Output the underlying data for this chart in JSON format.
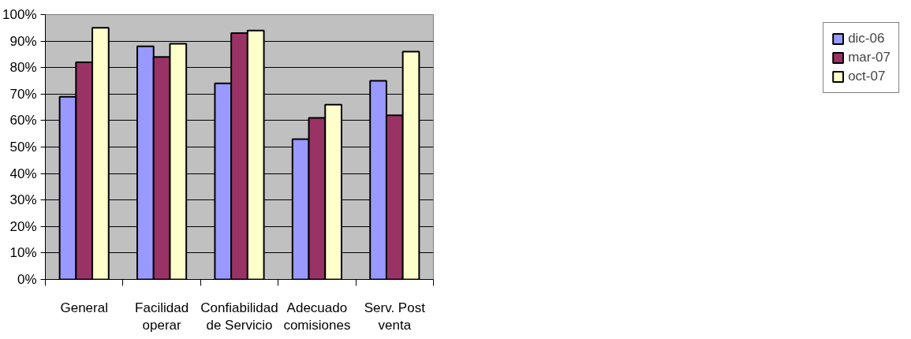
{
  "chart_data": {
    "type": "bar",
    "categories": [
      "General",
      "Facilidad\noperar",
      "Confiabilidad\nde Servicio",
      "Adecuado\ncomisiones",
      "Serv. Post\nventa"
    ],
    "series": [
      {
        "name": "dic-06",
        "color": "#9999ff",
        "values": [
          69,
          88,
          74,
          53,
          75
        ]
      },
      {
        "name": "mar-07",
        "color": "#993366",
        "values": [
          82,
          84,
          93,
          61,
          62
        ]
      },
      {
        "name": "oct-07",
        "color": "#ffffcc",
        "values": [
          95,
          89,
          94,
          66,
          86
        ]
      }
    ],
    "ylim": [
      0,
      100
    ],
    "yticks": [
      {
        "value": 0,
        "label": "0%"
      },
      {
        "value": 10,
        "label": "10%"
      },
      {
        "value": 20,
        "label": "20%"
      },
      {
        "value": 30,
        "label": "30%"
      },
      {
        "value": 40,
        "label": "40%"
      },
      {
        "value": 50,
        "label": "50%"
      },
      {
        "value": 60,
        "label": "60%"
      },
      {
        "value": 70,
        "label": "70%"
      },
      {
        "value": 80,
        "label": "80%"
      },
      {
        "value": 90,
        "label": "90%"
      },
      {
        "value": 100,
        "label": "100%"
      }
    ],
    "grid": "y",
    "legend": "right"
  }
}
